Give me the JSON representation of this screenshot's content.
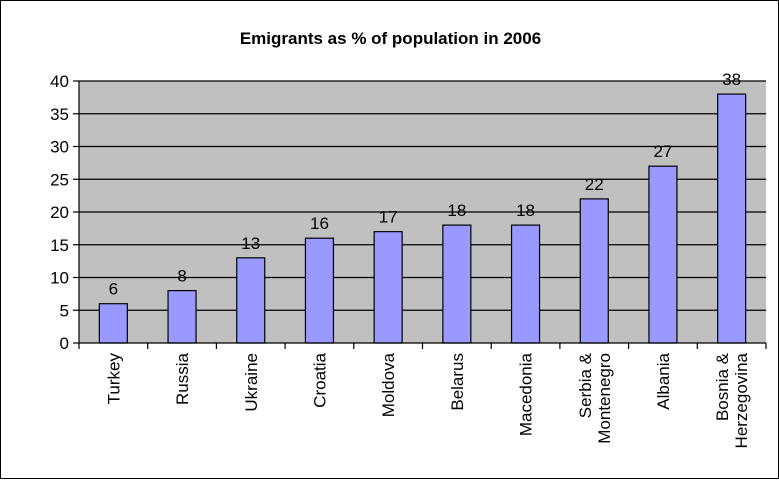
{
  "chart_data": {
    "type": "bar",
    "title": "Emigrants as % of population in 2006",
    "categories": [
      [
        "Turkey"
      ],
      [
        "Russia"
      ],
      [
        "Ukraine"
      ],
      [
        "Croatia"
      ],
      [
        "Moldova"
      ],
      [
        "Belarus"
      ],
      [
        "Macedonia"
      ],
      [
        "Serbia &",
        "Montenegro"
      ],
      [
        "Albania"
      ],
      [
        "Bosnia &",
        "Herzegovina"
      ]
    ],
    "values": [
      6,
      8,
      13,
      16,
      17,
      18,
      18,
      22,
      27,
      38
    ],
    "data_labels": [
      "6",
      "8",
      "13",
      "16",
      "17",
      "18",
      "18",
      "22",
      "27",
      "38"
    ],
    "ylim": [
      0,
      40
    ],
    "yticks": [
      0,
      5,
      10,
      15,
      20,
      25,
      30,
      35,
      40
    ],
    "grid": true,
    "legend": "none",
    "colors": {
      "plot_area": "#c0c0c0",
      "bar_fill": "#9999ff",
      "bar_stroke": "#000000",
      "gridline": "#000000"
    }
  }
}
